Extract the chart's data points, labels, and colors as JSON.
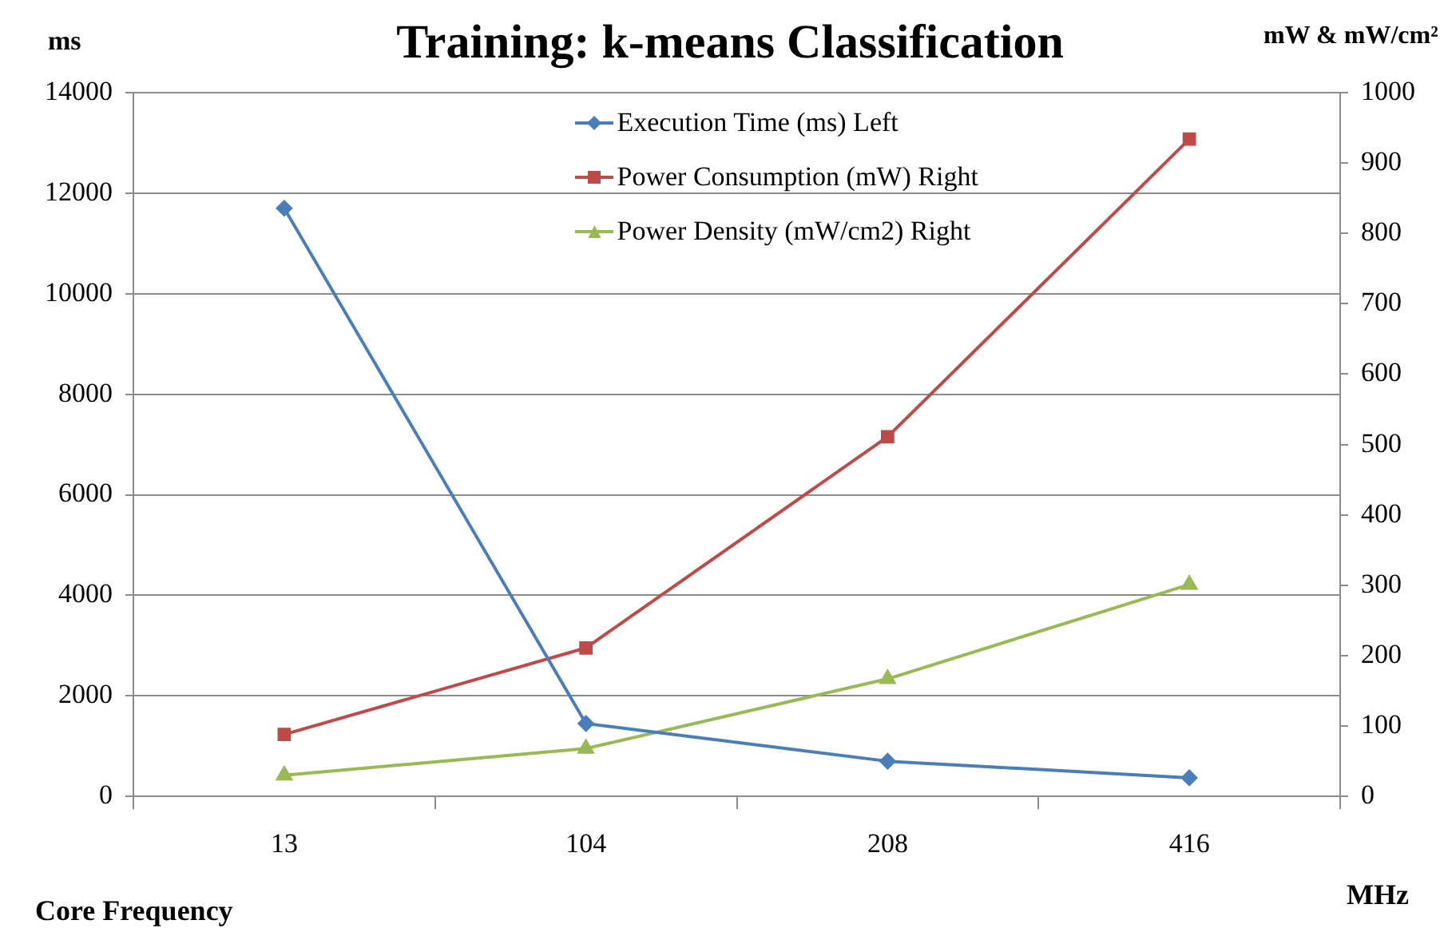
{
  "chart_data": {
    "type": "line",
    "title": "Training: k-means Classification",
    "xlabel": "Core Frequency",
    "ylabel": "ms",
    "y2label": "mW & mW/cm²",
    "annotations": [
      "MHz"
    ],
    "categories": [
      "13",
      "104",
      "208",
      "416"
    ],
    "series": [
      {
        "name": "Execution Time (ms) Left",
        "color": "#4a7ebb",
        "values": [
          11700,
          1450,
          700,
          370
        ],
        "marker": "diamond"
      },
      {
        "name": "Power Consumption (mW) Right",
        "color": "#be4b48",
        "values": [
          88,
          211,
          511,
          934
        ],
        "axis": "y2",
        "marker": "square"
      },
      {
        "name": "Power Density (mW/cm2) Right",
        "color": "#98b954",
        "values": [
          30,
          68,
          167,
          301
        ],
        "axis": "y2",
        "marker": "triangle"
      }
    ],
    "ylim": [
      0,
      14000
    ],
    "yticks": [
      0,
      2000,
      4000,
      6000,
      8000,
      10000,
      12000,
      14000
    ],
    "y2lim": [
      0,
      1000
    ],
    "y2ticks": [
      0,
      100,
      200,
      300,
      400,
      500,
      600,
      700,
      800,
      900,
      1000
    ],
    "grid": "y",
    "legend": "top",
    "line_style": "solid"
  }
}
